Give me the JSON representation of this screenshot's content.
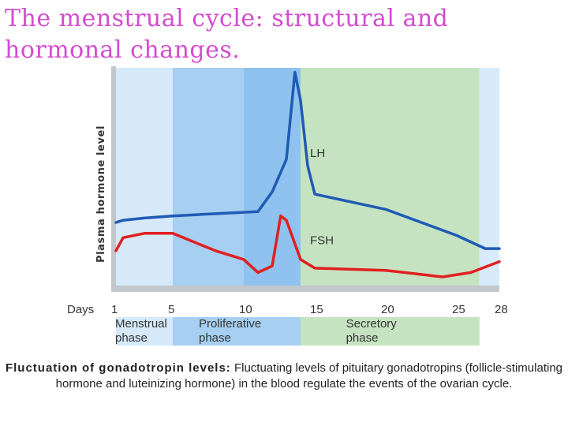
{
  "slide": {
    "title_line1": "The menstrual cycle: structural and",
    "title_line2": "hormonal changes.",
    "caption_bold": "Fluctuation of gonadotropin levels:",
    "caption_text": " Fluctuating levels of pituitary gonadotropins (follicle-stimulating hormone and luteinizing hormone) in the blood regulate the events of the ovarian cycle."
  },
  "chart_data": {
    "type": "line",
    "title": "",
    "ylabel": "Plasma hormone level",
    "xlabel_prefix": "Days",
    "xlim": [
      1,
      28
    ],
    "ylim": [
      0,
      1
    ],
    "x_ticks": [
      1,
      5,
      10,
      15,
      20,
      25,
      28
    ],
    "x_tick_labels": [
      "1",
      "5",
      "10",
      "15",
      "20",
      "25",
      "28"
    ],
    "phases": [
      {
        "name_line1": "Menstrual",
        "name_line2": "phase",
        "start_day": 1,
        "end_day": 5
      },
      {
        "name_line1": "Proliferative",
        "name_line2": "phase",
        "start_day": 5,
        "end_day": 14
      },
      {
        "name_line1": "Secretory",
        "name_line2": "phase",
        "start_day": 14,
        "end_day": 28
      }
    ],
    "series": [
      {
        "name": "LH",
        "color": "#1f5bb5",
        "x": [
          1,
          1.5,
          3,
          5,
          8,
          11,
          12,
          13,
          13.6,
          14,
          14.5,
          15,
          20,
          25,
          27,
          28
        ],
        "y": [
          0.29,
          0.3,
          0.31,
          0.32,
          0.33,
          0.34,
          0.43,
          0.58,
          0.98,
          0.85,
          0.55,
          0.42,
          0.35,
          0.23,
          0.17,
          0.17
        ]
      },
      {
        "name": "FSH",
        "color": "#e02020",
        "x": [
          1,
          1.5,
          3,
          5,
          8,
          10,
          11,
          12,
          12.6,
          13,
          14,
          15,
          20,
          24,
          26,
          28
        ],
        "y": [
          0.16,
          0.22,
          0.24,
          0.24,
          0.16,
          0.12,
          0.06,
          0.09,
          0.32,
          0.3,
          0.12,
          0.08,
          0.07,
          0.04,
          0.06,
          0.11
        ]
      }
    ],
    "annotations": [
      {
        "text": "LH",
        "series": "LH"
      },
      {
        "text": "FSH",
        "series": "FSH"
      }
    ],
    "colors": {
      "menstrual_band": "#d5e9f9",
      "proliferative_band": "#a6cff2",
      "proliferative_band_dark": "#8fc2ee",
      "secretory_band": "#c6e3c1",
      "edge_band": "#d8ebfb",
      "axis_frame": "#c2c7cc"
    }
  }
}
